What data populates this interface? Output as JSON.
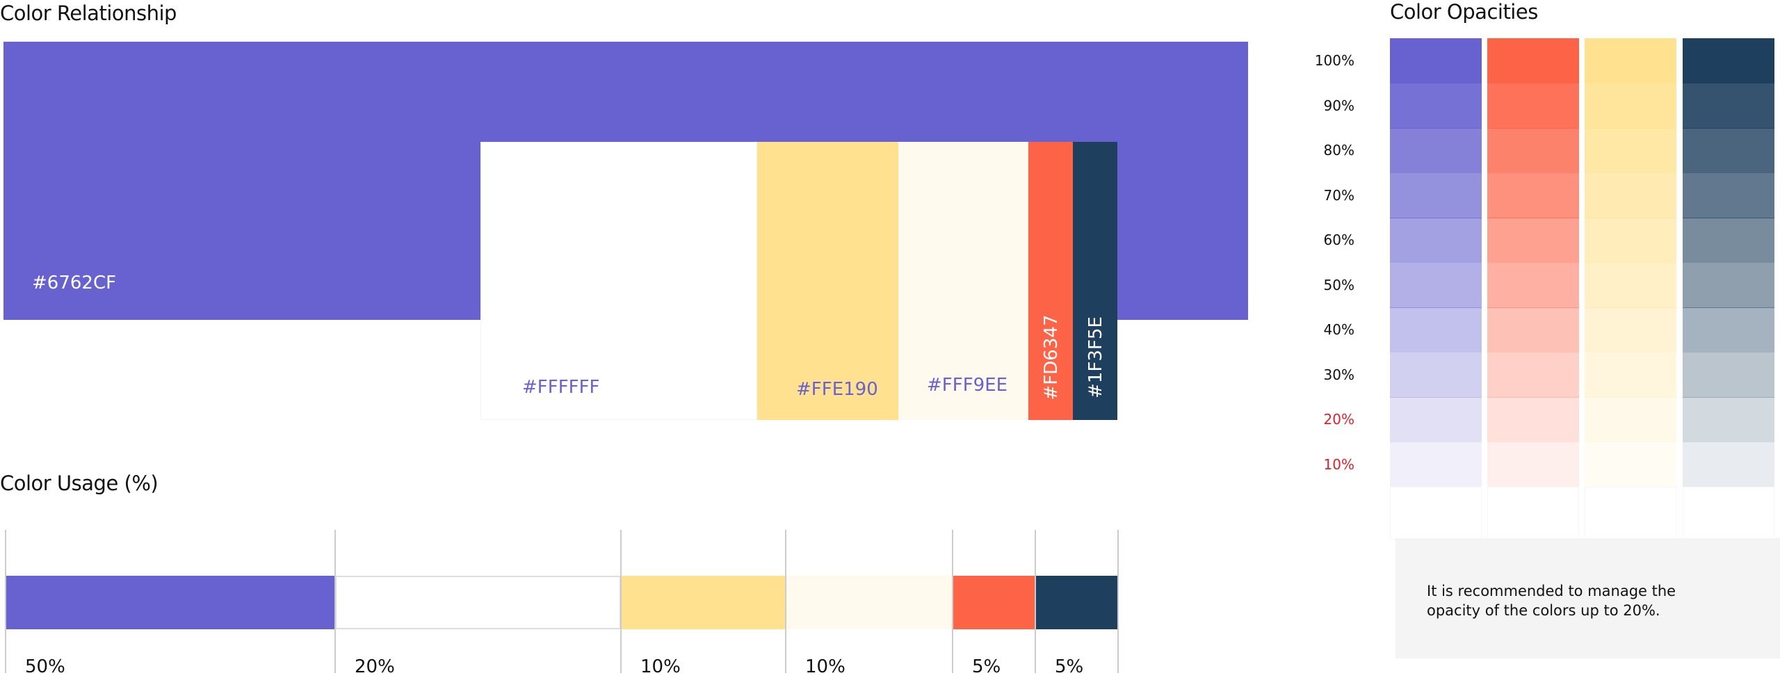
{
  "relationship": {
    "title": "Color Relationship",
    "swatches": [
      "#6762CF",
      "#FFFFFF",
      "#FFE190",
      "#FFF9EE",
      "#FD6347",
      "#1F3F5E"
    ]
  },
  "usage": {
    "title": "Color Usage (%)",
    "labels": [
      "50%",
      "20%",
      "10%",
      "10%",
      "5%",
      "5%"
    ]
  },
  "opacities": {
    "title": "Color Opacities",
    "colors": [
      "#6762CF",
      "#FD6347",
      "#FFE190",
      "#1F3F5E"
    ],
    "levels": [
      "100%",
      "90%",
      "80%",
      "70%",
      "60%",
      "50%",
      "40%",
      "30%",
      "20%",
      "10%"
    ],
    "note": [
      "It is recommended to manage the",
      "opacity of the colors up to 20%."
    ]
  }
}
